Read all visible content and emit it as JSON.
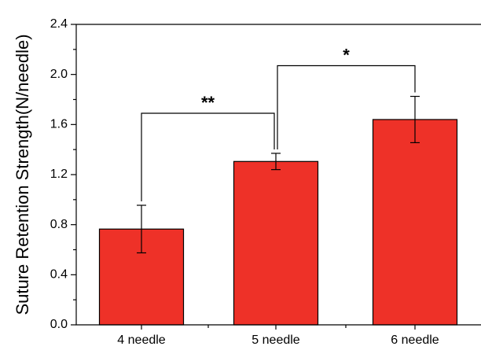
{
  "chart_data": {
    "type": "bar",
    "categories": [
      "4 needle",
      "5 needle",
      "6 needle"
    ],
    "values": [
      0.765,
      1.305,
      1.64
    ],
    "error": [
      0.19,
      0.065,
      0.185
    ],
    "ylabel": "Suture Retention Strength(N/needle)",
    "xlabel": "",
    "ylim": [
      0.0,
      2.4
    ],
    "yticks": [
      "0.0",
      "0.4",
      "0.8",
      "1.2",
      "1.6",
      "2.0",
      "2.4"
    ],
    "grid": false,
    "bar_color": "#ee3128",
    "significance": [
      {
        "from": "4 needle",
        "to": "5 needle",
        "label": "**",
        "bracket_y": 1.69
      },
      {
        "from": "5 needle",
        "to": "6 needle",
        "label": "*",
        "bracket_y": 2.07
      }
    ]
  }
}
